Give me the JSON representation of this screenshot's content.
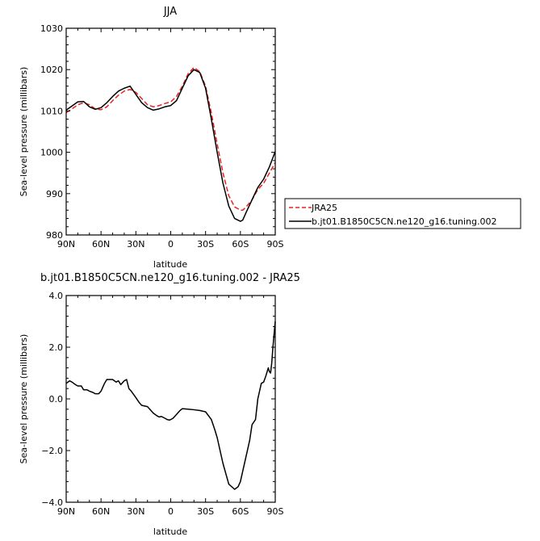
{
  "chart_data": [
    {
      "type": "line",
      "title": "JJA",
      "xlabel": "latitude",
      "ylabel": "Sea-level pressure (millibars)",
      "xlim": [
        90,
        -90
      ],
      "ylim": [
        980,
        1030
      ],
      "x_tick_values": [
        90,
        60,
        30,
        0,
        -30,
        -60,
        -90
      ],
      "x_tick_labels": [
        "90N",
        "60N",
        "30N",
        "0",
        "30S",
        "60S",
        "90S"
      ],
      "y_tick_values": [
        980,
        990,
        1000,
        1010,
        1020,
        1030
      ],
      "y_tick_labels": [
        "980",
        "990",
        "1000",
        "1010",
        "1020",
        "1030"
      ],
      "grid": false,
      "legend_position": "right",
      "series": [
        {
          "name": "JRA25",
          "color": "#e8231f",
          "dash": "dashed",
          "x": [
            90,
            85,
            80,
            75,
            70,
            65,
            60,
            55,
            50,
            45,
            40,
            35,
            30,
            25,
            20,
            15,
            10,
            5,
            0,
            -5,
            -10,
            -15,
            -20,
            -25,
            -30,
            -35,
            -40,
            -45,
            -50,
            -55,
            -60,
            -62,
            -65,
            -70,
            -75,
            -80,
            -85,
            -90
          ],
          "y": [
            1009.6,
            1010.5,
            1011.5,
            1012.0,
            1011.5,
            1010.5,
            1010.3,
            1011.0,
            1012.5,
            1013.8,
            1014.8,
            1015.2,
            1014.5,
            1013.0,
            1011.5,
            1011.0,
            1011.3,
            1011.8,
            1012.2,
            1013.5,
            1016.0,
            1019.0,
            1020.5,
            1019.5,
            1016.0,
            1009.5,
            1002.0,
            995.0,
            989.5,
            986.8,
            986.0,
            986.0,
            986.8,
            988.5,
            991.0,
            992.5,
            995.0,
            997.5
          ]
        },
        {
          "name": "b.jt01.B1850C5CN.ne120_g16.tuning.002",
          "color": "#000000",
          "dash": "solid",
          "x": [
            90,
            85,
            80,
            75,
            70,
            65,
            60,
            55,
            50,
            45,
            40,
            35,
            30,
            25,
            20,
            15,
            10,
            5,
            0,
            -5,
            -10,
            -15,
            -20,
            -25,
            -30,
            -35,
            -40,
            -45,
            -50,
            -55,
            -60,
            -62,
            -65,
            -70,
            -75,
            -80,
            -85,
            -90
          ],
          "y": [
            1010.2,
            1011.2,
            1012.2,
            1012.3,
            1011.0,
            1010.4,
            1010.8,
            1012.0,
            1013.5,
            1014.8,
            1015.5,
            1016.0,
            1014.0,
            1012.0,
            1010.8,
            1010.2,
            1010.5,
            1011.0,
            1011.3,
            1012.5,
            1015.5,
            1018.5,
            1020.0,
            1019.3,
            1015.5,
            1008.0,
            1000.0,
            992.5,
            987.0,
            984.0,
            983.3,
            983.6,
            985.5,
            988.5,
            991.5,
            993.5,
            996.5,
            1000.2
          ]
        }
      ]
    },
    {
      "type": "line",
      "title": "b.jt01.B1850C5CN.ne120_g16.tuning.002 - JRA25",
      "xlabel": "latitude",
      "ylabel": "Sea-level pressure (millibars)",
      "xlim": [
        90,
        -90
      ],
      "ylim": [
        -4.0,
        4.0
      ],
      "x_tick_values": [
        90,
        60,
        30,
        0,
        -30,
        -60,
        -90
      ],
      "x_tick_labels": [
        "90N",
        "60N",
        "30N",
        "0",
        "30S",
        "60S",
        "90S"
      ],
      "y_tick_values": [
        -4.0,
        -2.0,
        0.0,
        2.0,
        4.0
      ],
      "y_tick_labels": [
        "−4.0",
        "−2.0",
        "0.0",
        "2.0",
        "4.0"
      ],
      "grid": false,
      "series": [
        {
          "color": "#000000",
          "dash": "solid",
          "x": [
            90,
            87,
            85,
            82,
            80,
            77,
            75,
            72,
            70,
            67,
            65,
            62,
            60,
            57,
            55,
            52,
            50,
            47,
            45,
            43,
            42,
            40,
            38,
            36,
            34,
            30,
            27,
            25,
            20,
            15,
            12,
            10,
            8,
            5,
            3,
            1,
            0,
            -2,
            -5,
            -8,
            -10,
            -15,
            -20,
            -25,
            -30,
            -35,
            -38,
            -40,
            -45,
            -50,
            -55,
            -58,
            -60,
            -62,
            -65,
            -68,
            -70,
            -73,
            -75,
            -78,
            -80,
            -82,
            -84,
            -85,
            -86,
            -87,
            -88,
            -89,
            -90
          ],
          "y": [
            0.6,
            0.7,
            0.65,
            0.55,
            0.5,
            0.5,
            0.35,
            0.35,
            0.3,
            0.25,
            0.2,
            0.2,
            0.3,
            0.6,
            0.75,
            0.75,
            0.75,
            0.65,
            0.7,
            0.55,
            0.6,
            0.7,
            0.75,
            0.4,
            0.3,
            0.05,
            -0.15,
            -0.25,
            -0.3,
            -0.55,
            -0.65,
            -0.7,
            -0.68,
            -0.75,
            -0.8,
            -0.82,
            -0.8,
            -0.75,
            -0.6,
            -0.45,
            -0.38,
            -0.4,
            -0.42,
            -0.45,
            -0.5,
            -0.8,
            -1.2,
            -1.5,
            -2.5,
            -3.3,
            -3.5,
            -3.4,
            -3.2,
            -2.8,
            -2.2,
            -1.6,
            -1.0,
            -0.8,
            0.0,
            0.6,
            0.65,
            0.9,
            1.2,
            1.05,
            1.0,
            1.4,
            2.0,
            2.5,
            3.0
          ]
        }
      ]
    }
  ]
}
